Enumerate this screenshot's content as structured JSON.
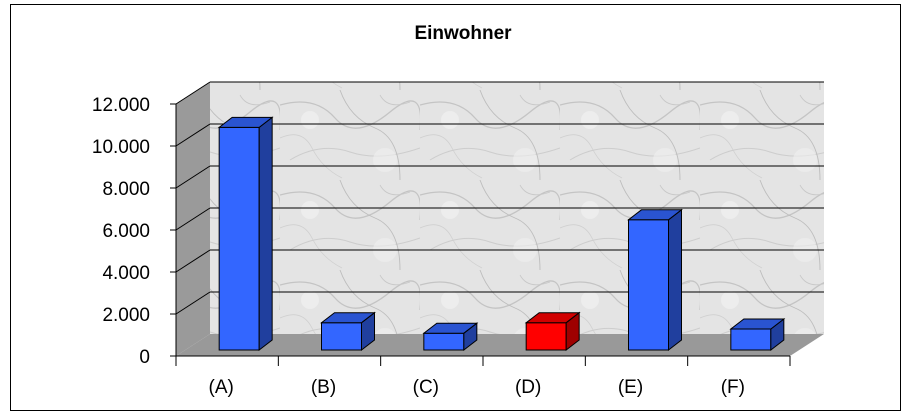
{
  "chart_data": {
    "type": "bar",
    "title": "Einwohner",
    "categories": [
      "(A)",
      "(B)",
      "(C)",
      "(D)",
      "(E)",
      "(F)"
    ],
    "values": [
      10600,
      1300,
      800,
      1300,
      6200,
      1000
    ],
    "ylim": [
      0,
      12000
    ],
    "yticks": [
      0,
      2000,
      4000,
      6000,
      8000,
      10000,
      12000
    ],
    "ytick_labels": [
      "0",
      "2.000",
      "4.000",
      "6.000",
      "8.000",
      "10.000",
      "12.000"
    ],
    "grid": true,
    "style": "3d-column, marble background",
    "colors": {
      "default_bar": "#3366ff",
      "highlight_bar": "#ff0000",
      "floor": "#999999",
      "side_wall": "#9a9a9a",
      "grid": "#000000"
    },
    "highlight_category": "(D)"
  }
}
